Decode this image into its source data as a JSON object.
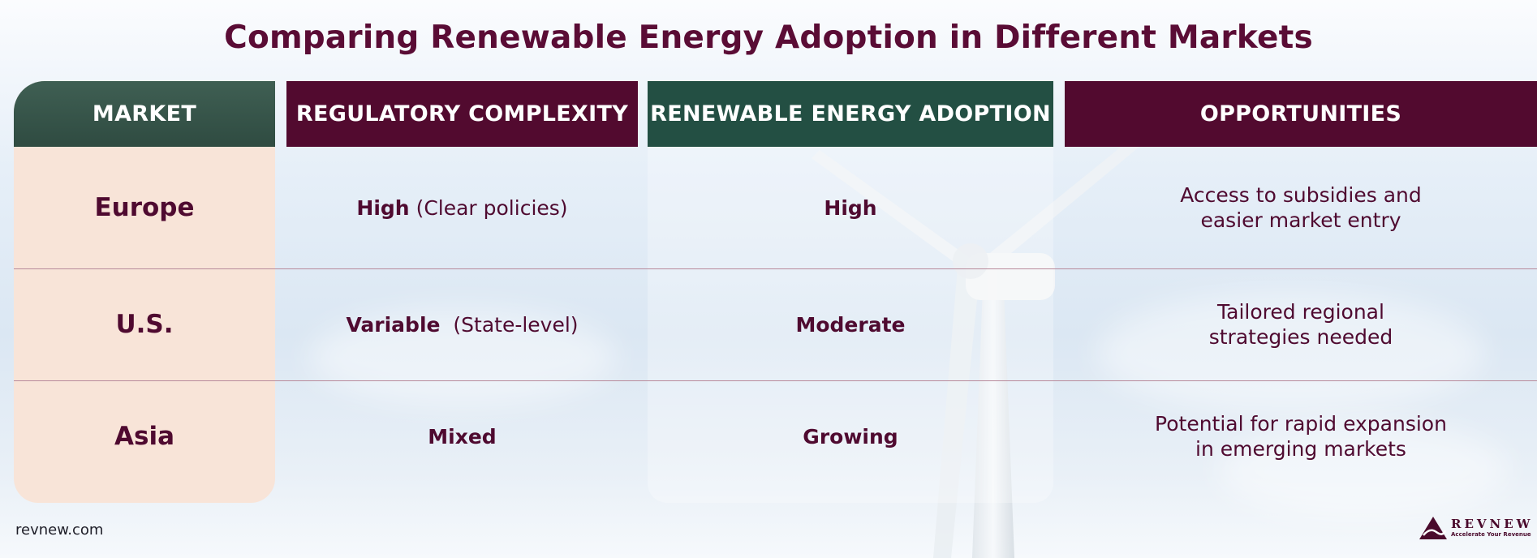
{
  "title": "Comparing Renewable Energy Adoption in Different Markets",
  "headers": {
    "market": "MARKET",
    "regulatory": "REGULATORY COMPLEXITY",
    "adoption": "RENEWABLE ENERGY ADOPTION",
    "opportunities": "OPPORTUNITIES"
  },
  "rows": [
    {
      "market": "Europe",
      "regulatory_level": "High",
      "regulatory_note": "(Clear policies)",
      "adoption": "High",
      "opportunities": "Access to subsidies and\neasier market entry"
    },
    {
      "market": "U.S.",
      "regulatory_level": "Variable",
      "regulatory_note": "(State-level)",
      "adoption": "Moderate",
      "opportunities": "Tailored regional\nstrategies needed"
    },
    {
      "market": "Asia",
      "regulatory_level": "Mixed",
      "regulatory_note": "",
      "adoption": "Growing",
      "opportunities": "Potential for rapid expansion\nin emerging markets"
    }
  ],
  "footer": {
    "url": "revnew.com",
    "brand_name": "REVNEW",
    "brand_tagline": "Accelerate Your Revenue"
  },
  "colors": {
    "maroon": "#520a2f",
    "teal": "#234f43",
    "peach": "#f8e4d8"
  }
}
